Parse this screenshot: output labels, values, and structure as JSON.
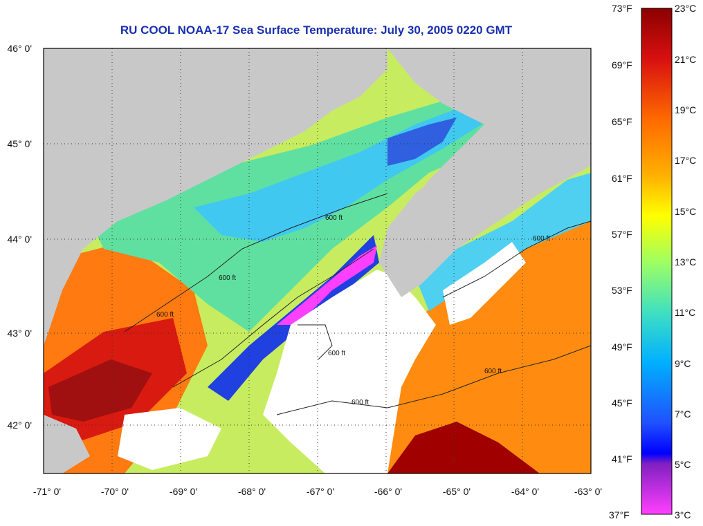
{
  "title": "RU COOL  NOAA-17  Sea Surface Temperature:  July 30, 2005 0220 GMT",
  "map": {
    "lon_range": [
      -71,
      -63
    ],
    "lat_range": [
      41.5,
      46.1
    ],
    "lat_labels": [
      "46° 0'",
      "45° 0'",
      "44° 0'",
      "43° 0'",
      "42° 0'"
    ],
    "lon_labels": [
      "-71° 0'",
      "-70° 0'",
      "-69° 0'",
      "-68° 0'",
      "-67° 0'",
      "-66° 0'",
      "-65° 0'",
      "-64° 0'",
      "-63° 0'"
    ],
    "contour_label": "600 ft",
    "colors": {
      "land": "#c8c8c8",
      "cloud": "#ffffff",
      "frame": "#000000"
    }
  },
  "colorbar": {
    "fahrenheit": [
      "73°F",
      "69°F",
      "65°F",
      "61°F",
      "57°F",
      "53°F",
      "49°F",
      "45°F",
      "41°F",
      "37°F"
    ],
    "celsius": [
      "23°C",
      "21°C",
      "19°C",
      "17°C",
      "15°C",
      "13°C",
      "11°C",
      "9°C",
      "7°C",
      "5°C",
      "3°C"
    ],
    "colors": [
      "#8b0000",
      "#e02000",
      "#ff6a00",
      "#ffb000",
      "#ffff00",
      "#a0ff60",
      "#40e0c0",
      "#00b0ff",
      "#2050ff",
      "#0000ff",
      "#8020c0",
      "#ff40ff"
    ]
  }
}
